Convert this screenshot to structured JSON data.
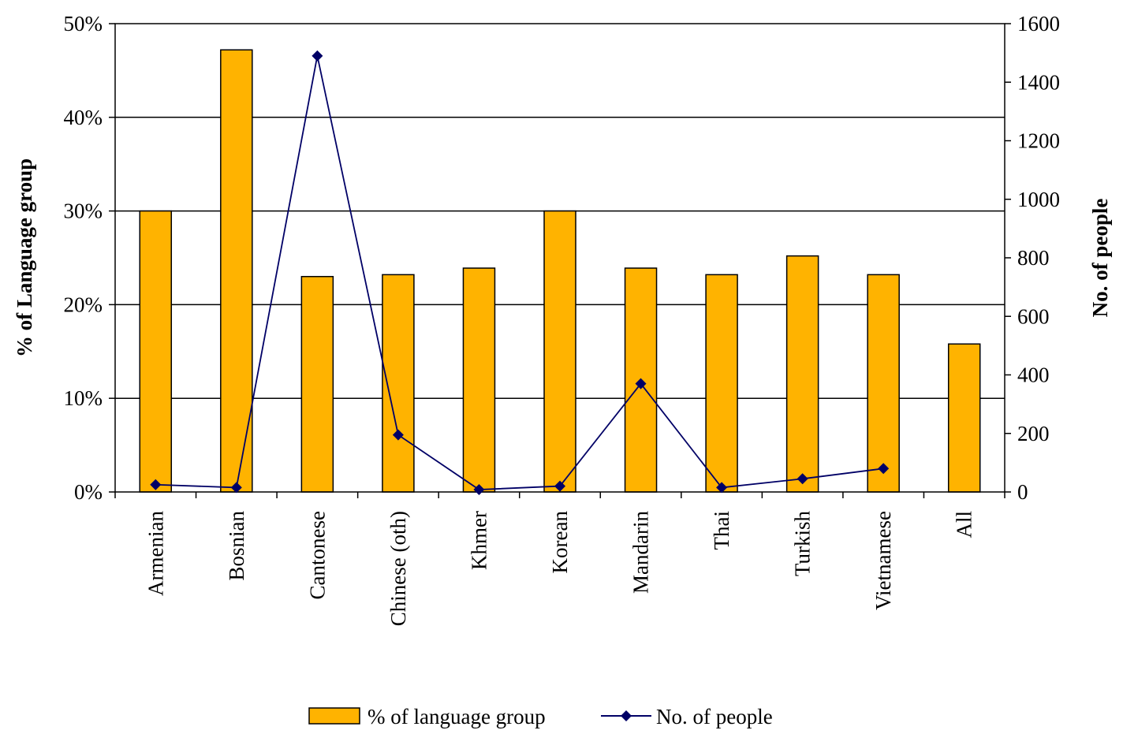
{
  "chart_data": {
    "type": "bar",
    "categories": [
      "Armenian",
      "Bosnian",
      "Cantonese",
      "Chinese (oth)",
      "Khmer",
      "Korean",
      "Mandarin",
      "Thai",
      "Turkish",
      "Vietnamese",
      "All"
    ],
    "series": [
      {
        "name": "% of language group",
        "type": "bar",
        "axis": "left",
        "values": [
          30,
          47.2,
          23,
          23.2,
          23.9,
          30,
          23.9,
          23.2,
          25.2,
          23.2,
          15.8
        ],
        "color": "#FFB300"
      },
      {
        "name": "No. of people",
        "type": "line",
        "axis": "right",
        "values": [
          25,
          15,
          1490,
          195,
          8,
          20,
          370,
          15,
          45,
          80,
          null
        ],
        "color": "#000066"
      }
    ],
    "yleft": {
      "label": "% of Language group",
      "ylim": [
        0,
        50
      ],
      "ticks": [
        0,
        10,
        20,
        30,
        40,
        50
      ],
      "tick_labels": [
        "0%",
        "10%",
        "20%",
        "30%",
        "40%",
        "50%"
      ]
    },
    "yright": {
      "label": "No. of people",
      "ylim": [
        0,
        1600
      ],
      "ticks": [
        0,
        200,
        400,
        600,
        800,
        1000,
        1200,
        1400,
        1600
      ],
      "tick_labels": [
        "0",
        "200",
        "400",
        "600",
        "800",
        "1000",
        "1200",
        "1400",
        "1600"
      ]
    },
    "grid": true,
    "legend": "bottom",
    "title": "",
    "xlabel": ""
  }
}
